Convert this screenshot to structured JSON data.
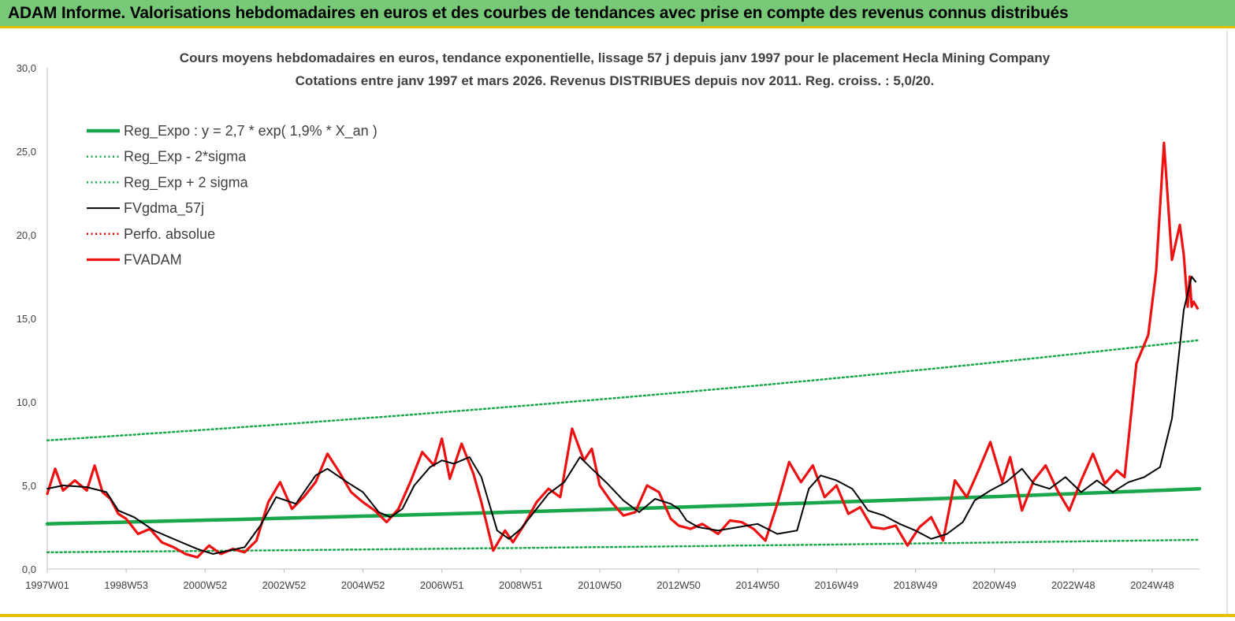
{
  "header": {
    "title": "ADAM Informe. Valorisations hebdomadaires en euros et des courbes de tendances avec prise en compte des revenus connus distribués"
  },
  "colors": {
    "header_bg": "#77c977",
    "header_accent": "#e5c100",
    "reg_expo": "#1aa64a",
    "reg_band": "#1aa64a",
    "fvgdma": "#000000",
    "perfo": "#e00000",
    "fvadam": "#ee1111"
  },
  "chart_data": {
    "type": "line",
    "title_line1": "Cours moyens hebdomadaires en euros, tendance exponentielle, lissage 57 j depuis janv 1997 pour le placement Hecla Mining Company",
    "title_line2": "Cotations entre janv 1997 et mars 2026. Revenus DISTRIBUES depuis nov 2011. Reg. croiss. : 5,0/20.",
    "xlabel": "",
    "ylabel": "",
    "ylim": [
      0,
      30
    ],
    "y_ticks": [
      "0,0",
      "5,0",
      "10,0",
      "15,0",
      "20,0",
      "25,0",
      "30,0"
    ],
    "x_range": [
      1997.0,
      2026.2
    ],
    "x_ticks": [
      {
        "label": "1997W01",
        "year": 1997.0
      },
      {
        "label": "1998W53",
        "year": 1999.0
      },
      {
        "label": "2000W52",
        "year": 2001.0
      },
      {
        "label": "2002W52",
        "year": 2003.0
      },
      {
        "label": "2004W52",
        "year": 2005.0
      },
      {
        "label": "2006W51",
        "year": 2007.0
      },
      {
        "label": "2008W51",
        "year": 2009.0
      },
      {
        "label": "2010W50",
        "year": 2011.0
      },
      {
        "label": "2012W50",
        "year": 2013.0
      },
      {
        "label": "2014W50",
        "year": 2015.0
      },
      {
        "label": "2016W49",
        "year": 2017.0
      },
      {
        "label": "2018W49",
        "year": 2019.0
      },
      {
        "label": "2020W49",
        "year": 2021.0
      },
      {
        "label": "2022W48",
        "year": 2023.0
      },
      {
        "label": "2024W48",
        "year": 2025.0
      }
    ],
    "grid": false,
    "legend_position": "top-left",
    "series": [
      {
        "name": "Reg_Expo : y = 2,7 * exp( 1,9% *  X_an )",
        "style": "solid-thick",
        "color": "#1aa64a",
        "x": [
          1997.0,
          2026.2
        ],
        "y": [
          2.7,
          4.8
        ]
      },
      {
        "name": "Reg_Exp - 2*sigma",
        "style": "dotted",
        "color": "#1aa64a",
        "x": [
          1997.0,
          2026.2
        ],
        "y": [
          1.0,
          1.75
        ]
      },
      {
        "name": "Reg_Exp + 2 sigma",
        "style": "dotted",
        "color": "#1aa64a",
        "x": [
          1997.0,
          2026.2
        ],
        "y": [
          7.7,
          13.7
        ]
      },
      {
        "name": "FVgdma_57j",
        "style": "solid",
        "color": "#000000",
        "x": [
          1997.0,
          1997.4,
          1998.0,
          1998.5,
          1998.8,
          1999.2,
          1999.7,
          2000.3,
          2000.8,
          2001.2,
          2001.6,
          2002.0,
          2002.4,
          2002.8,
          2003.3,
          2003.8,
          2004.1,
          2004.6,
          2005.0,
          2005.4,
          2005.7,
          2006.0,
          2006.3,
          2006.7,
          2007.0,
          2007.3,
          2007.7,
          2008.0,
          2008.4,
          2008.7,
          2009.0,
          2009.4,
          2009.7,
          2010.1,
          2010.5,
          2010.8,
          2011.2,
          2011.6,
          2012.0,
          2012.4,
          2012.8,
          2013.0,
          2013.2,
          2013.5,
          2014.0,
          2014.5,
          2015.0,
          2015.5,
          2016.0,
          2016.3,
          2016.6,
          2017.0,
          2017.4,
          2017.8,
          2018.2,
          2018.6,
          2019.0,
          2019.4,
          2019.8,
          2020.2,
          2020.5,
          2020.9,
          2021.3,
          2021.7,
          2022.0,
          2022.4,
          2022.8,
          2023.2,
          2023.6,
          2024.0,
          2024.4,
          2024.8,
          2025.2,
          2025.5,
          2025.8,
          2026.0,
          2026.1
        ],
        "y": [
          4.8,
          5.0,
          4.9,
          4.6,
          3.5,
          3.1,
          2.3,
          1.7,
          1.2,
          0.9,
          1.1,
          1.3,
          2.6,
          4.3,
          3.9,
          5.6,
          6.0,
          5.2,
          4.6,
          3.4,
          3.1,
          3.6,
          5.0,
          6.1,
          6.5,
          6.3,
          6.7,
          5.5,
          2.3,
          1.8,
          2.4,
          3.6,
          4.5,
          5.2,
          6.7,
          6.0,
          5.1,
          4.1,
          3.4,
          4.2,
          3.9,
          3.6,
          2.9,
          2.5,
          2.3,
          2.5,
          2.7,
          2.1,
          2.3,
          4.8,
          5.6,
          5.3,
          4.8,
          3.5,
          3.2,
          2.7,
          2.3,
          1.8,
          2.1,
          2.8,
          4.1,
          4.7,
          5.2,
          6.0,
          5.1,
          4.8,
          5.5,
          4.6,
          5.3,
          4.6,
          5.2,
          5.5,
          6.1,
          9.0,
          15.5,
          17.5,
          17.2
        ]
      },
      {
        "name": "Perfo. absolue",
        "style": "dotted",
        "color": "#e00000",
        "x": [],
        "y": []
      },
      {
        "name": "FVADAM",
        "style": "solid-thick",
        "color": "#ee1111",
        "x": [
          1997.0,
          1997.2,
          1997.4,
          1997.7,
          1998.0,
          1998.2,
          1998.4,
          1998.6,
          1998.8,
          1999.0,
          1999.3,
          1999.6,
          1999.9,
          2000.2,
          2000.5,
          2000.8,
          2001.1,
          2001.4,
          2001.7,
          2002.0,
          2002.3,
          2002.6,
          2002.9,
          2003.2,
          2003.5,
          2003.8,
          2004.1,
          2004.4,
          2004.7,
          2005.0,
          2005.3,
          2005.6,
          2005.9,
          2006.2,
          2006.5,
          2006.8,
          2007.0,
          2007.2,
          2007.5,
          2007.8,
          2008.0,
          2008.3,
          2008.6,
          2008.8,
          2009.1,
          2009.4,
          2009.7,
          2010.0,
          2010.3,
          2010.6,
          2010.8,
          2011.0,
          2011.3,
          2011.6,
          2011.9,
          2012.2,
          2012.5,
          2012.8,
          2013.0,
          2013.3,
          2013.6,
          2014.0,
          2014.3,
          2014.6,
          2014.9,
          2015.2,
          2015.5,
          2015.8,
          2016.1,
          2016.4,
          2016.7,
          2017.0,
          2017.3,
          2017.6,
          2017.9,
          2018.2,
          2018.5,
          2018.8,
          2019.1,
          2019.4,
          2019.7,
          2020.0,
          2020.3,
          2020.6,
          2020.9,
          2021.2,
          2021.4,
          2021.7,
          2022.0,
          2022.3,
          2022.6,
          2022.9,
          2023.2,
          2023.5,
          2023.8,
          2024.1,
          2024.3,
          2024.6,
          2024.9,
          2025.1,
          2025.3,
          2025.5,
          2025.7,
          2025.8,
          2025.9,
          2025.95,
          2026.0,
          2026.05,
          2026.1,
          2026.15
        ],
        "y": [
          4.5,
          6.0,
          4.7,
          5.3,
          4.7,
          6.2,
          4.6,
          4.2,
          3.3,
          3.0,
          2.1,
          2.4,
          1.6,
          1.3,
          0.9,
          0.7,
          1.4,
          0.9,
          1.2,
          1.0,
          1.7,
          4.0,
          5.2,
          3.6,
          4.3,
          5.2,
          6.9,
          5.8,
          4.6,
          4.0,
          3.5,
          2.8,
          3.6,
          5.2,
          7.0,
          6.2,
          7.8,
          5.4,
          7.5,
          5.7,
          4.0,
          1.1,
          2.3,
          1.6,
          2.7,
          4.0,
          4.8,
          4.3,
          8.4,
          6.5,
          7.2,
          5.0,
          4.0,
          3.2,
          3.4,
          5.0,
          4.6,
          3.0,
          2.6,
          2.4,
          2.7,
          2.1,
          2.9,
          2.8,
          2.4,
          1.7,
          3.9,
          6.4,
          5.2,
          6.2,
          4.3,
          5.0,
          3.3,
          3.7,
          2.5,
          2.4,
          2.6,
          1.4,
          2.5,
          3.1,
          1.7,
          5.3,
          4.3,
          5.9,
          7.6,
          5.2,
          6.7,
          3.5,
          5.3,
          6.2,
          4.7,
          3.5,
          5.3,
          6.9,
          5.1,
          5.9,
          5.5,
          12.3,
          14.0,
          17.8,
          25.5,
          18.5,
          20.6,
          18.8,
          15.7,
          17.5,
          15.7,
          16.0,
          15.8,
          15.6
        ]
      }
    ]
  }
}
